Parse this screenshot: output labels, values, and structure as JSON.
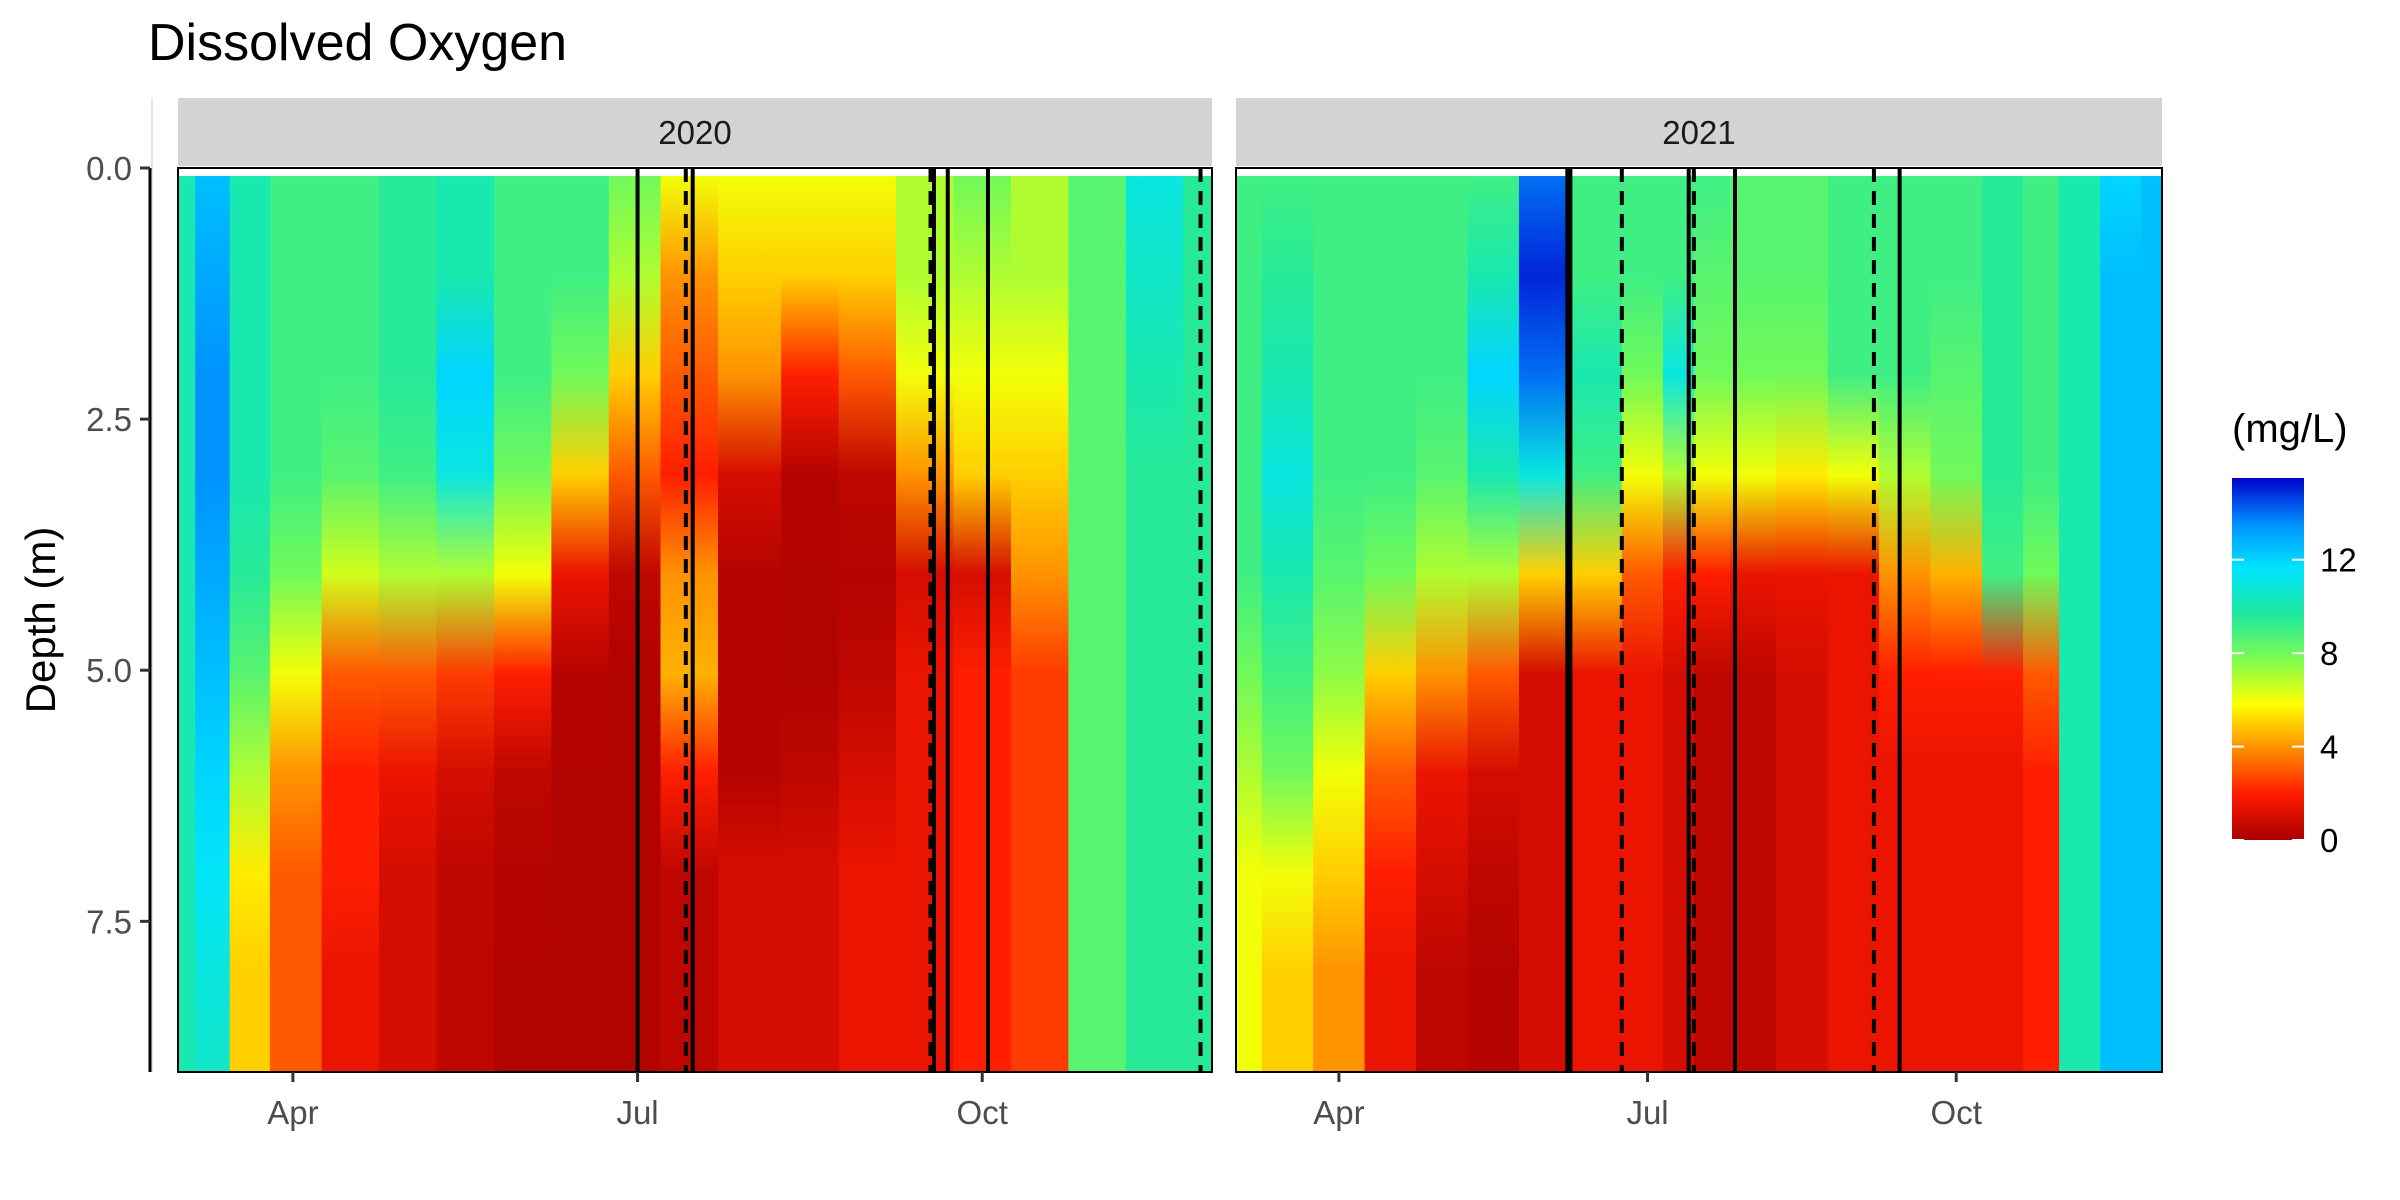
{
  "chart_data": {
    "type": "heatmap",
    "title": "Dissolved Oxygen",
    "ylabel": "Depth (m)",
    "xlabel": "",
    "y_reversed": true,
    "ylim": [
      0,
      9
    ],
    "y_ticks": [
      0.0,
      2.5,
      5.0,
      7.5
    ],
    "y_tick_labels": [
      "0.0",
      "2.5",
      "5.0",
      "7.5"
    ],
    "x_domain_months": [
      3.0,
      12.0
    ],
    "x_ticks": [
      {
        "label": "Apr",
        "month": 4.0
      },
      {
        "label": "Jul",
        "month": 7.0
      },
      {
        "label": "Oct",
        "month": 10.0
      }
    ],
    "colorbar": {
      "title": "(mg/L)",
      "min": 0,
      "max": 15.5,
      "ticks": [
        0,
        4,
        8,
        12
      ],
      "tick_labels": [
        "0",
        "4",
        "8",
        "12"
      ],
      "palette": [
        "#a80000",
        "#ff1a00",
        "#ff8c00",
        "#ffff00",
        "#7cfc50",
        "#1ee8a0",
        "#00e5ff",
        "#0090ff",
        "#0000cc"
      ]
    },
    "panels": [
      {
        "label": "2020",
        "profiles": [
          {
            "month": 3.0,
            "values": [
              10,
              10,
              10,
              10,
              10,
              10,
              10,
              10,
              10,
              10
            ]
          },
          {
            "month": 3.3,
            "values": [
              12.5,
              13,
              13.5,
              13.5,
              13,
              12.5,
              12,
              11.5,
              11,
              10.5
            ]
          },
          {
            "month": 3.6,
            "values": [
              10,
              10,
              10,
              10,
              9.5,
              8.5,
              7,
              5.5,
              5,
              5
            ]
          },
          {
            "month": 4.0,
            "values": [
              9,
              9,
              9,
              9,
              8,
              6,
              4,
              3,
              3,
              3
            ]
          },
          {
            "month": 4.5,
            "values": [
              9,
              9,
              9,
              8.5,
              6.5,
              3,
              2,
              2,
              1.5,
              1.5
            ]
          },
          {
            "month": 5.0,
            "values": [
              9.5,
              9.5,
              9.5,
              9,
              7,
              3,
              1.5,
              1,
              1,
              1
            ]
          },
          {
            "month": 5.5,
            "values": [
              10,
              10,
              12,
              11,
              7,
              2.5,
              1,
              0.5,
              0.5,
              0.5
            ]
          },
          {
            "month": 6.0,
            "values": [
              9,
              9,
              9,
              8,
              6,
              2,
              0.5,
              0.3,
              0.2,
              0.2
            ]
          },
          {
            "month": 6.5,
            "values": [
              9,
              9,
              8,
              5,
              1.5,
              0.3,
              0.2,
              0.2,
              0.2,
              0.2
            ]
          },
          {
            "month": 7.0,
            "values": [
              8,
              7,
              5,
              3,
              0.5,
              0.2,
              0.2,
              0.2,
              0.2,
              0.2
            ]
          },
          {
            "month": 7.4,
            "values": [
              6,
              4,
              3,
              2,
              4,
              4.5,
              2,
              0.5,
              0.5,
              0.5
            ]
          },
          {
            "month": 8.0,
            "values": [
              6,
              5,
              4,
              1,
              0.3,
              0.3,
              0.3,
              1,
              1,
              1
            ]
          },
          {
            "month": 8.5,
            "values": [
              6,
              5,
              2,
              0.3,
              0.2,
              0.2,
              0.5,
              1,
              1,
              1
            ]
          },
          {
            "month": 9.0,
            "values": [
              6,
              5,
              3,
              0.5,
              0.3,
              0.5,
              1,
              1.5,
              1.5,
              1.5
            ]
          },
          {
            "month": 9.5,
            "values": [
              7,
              7,
              6,
              4,
              1,
              1.5,
              1.5,
              1.5,
              1.5,
              1.5
            ]
          },
          {
            "month": 10.0,
            "values": [
              8,
              7,
              6,
              5,
              1,
              2,
              2,
              2,
              2,
              2
            ]
          },
          {
            "month": 10.5,
            "values": [
              7,
              7,
              6,
              5,
              4,
              2.5,
              2.5,
              2.5,
              2.5,
              2.5
            ]
          },
          {
            "month": 11.0,
            "values": [
              8.5,
              8.5,
              8.5,
              8.5,
              8.5,
              8.5,
              8.5,
              8.5,
              8.5,
              8.5
            ]
          },
          {
            "month": 11.5,
            "values": [
              11,
              10.5,
              10,
              9.5,
              9.5,
              9.5,
              9.5,
              9.5,
              9.5,
              9.5
            ]
          },
          {
            "month": 12.0,
            "values": [
              9.5,
              9.5,
              9.5,
              9.5,
              9.5,
              9.5,
              9.5,
              9.5,
              9.5,
              9.5
            ]
          }
        ],
        "solid_lines": [
          7.0,
          7.48,
          9.58,
          9.7,
          10.05
        ],
        "dashed_lines": [
          7.42,
          9.55,
          11.9
        ]
      },
      {
        "label": "2021",
        "profiles": [
          {
            "month": 3.0,
            "values": [
              9,
              9,
              9,
              9,
              9,
              8,
              7,
              6,
              6,
              6
            ]
          },
          {
            "month": 3.5,
            "values": [
              9,
              9.5,
              10,
              11,
              10,
              9,
              8,
              6,
              5,
              5
            ]
          },
          {
            "month": 4.0,
            "values": [
              9,
              9,
              9,
              9,
              8.5,
              7.5,
              6,
              5,
              4,
              4
            ]
          },
          {
            "month": 4.5,
            "values": [
              9,
              9,
              9,
              9,
              8,
              5,
              3,
              2,
              1.5,
              1.5
            ]
          },
          {
            "month": 5.0,
            "values": [
              9,
              9,
              9,
              8.5,
              7,
              4,
              1.5,
              1,
              0.5,
              0.5
            ]
          },
          {
            "month": 5.5,
            "values": [
              9,
              10,
              12,
              10,
              7,
              3,
              1,
              0.5,
              0.3,
              0.3
            ]
          },
          {
            "month": 6.0,
            "values": [
              14,
              15,
              14,
              11,
              5,
              1,
              1,
              1,
              1,
              1
            ]
          },
          {
            "month": 6.5,
            "values": [
              9,
              9,
              10,
              9,
              5,
              1.5,
              1.5,
              1.5,
              1.5,
              1.5
            ]
          },
          {
            "month": 7.0,
            "values": [
              9,
              9,
              8,
              6,
              3,
              1.5,
              1.5,
              1.5,
              1.5,
              1.5
            ]
          },
          {
            "month": 7.3,
            "values": [
              9,
              9,
              11,
              7,
              2,
              1,
              1,
              1,
              1,
              1
            ]
          },
          {
            "month": 7.6,
            "values": [
              9,
              8.5,
              8,
              6,
              2,
              0.5,
              0.5,
              0.5,
              0.5,
              0.5
            ]
          },
          {
            "month": 8.0,
            "values": [
              8.5,
              8.5,
              8,
              6,
              1.5,
              0.5,
              0.5,
              0.5,
              0.5,
              0.5
            ]
          },
          {
            "month": 8.5,
            "values": [
              8.5,
              8.5,
              8,
              5.5,
              1.5,
              1,
              1,
              1,
              1,
              1
            ]
          },
          {
            "month": 9.0,
            "values": [
              9,
              9,
              9,
              6,
              1.5,
              1.5,
              1.5,
              1.5,
              1.5,
              1.5
            ]
          },
          {
            "month": 9.5,
            "values": [
              9,
              9,
              9,
              7,
              4,
              2,
              1.5,
              1.5,
              1.5,
              1.5
            ]
          },
          {
            "month": 10.0,
            "values": [
              9,
              9,
              8.5,
              8,
              4.5,
              2,
              1.5,
              1.5,
              1.5,
              1.5
            ]
          },
          {
            "month": 10.5,
            "values": [
              9.5,
              9.5,
              9.5,
              9.5,
              9,
              2,
              1.5,
              1.5,
              1.5,
              1.5
            ]
          },
          {
            "month": 10.8,
            "values": [
              9,
              9,
              9,
              9,
              8,
              3,
              2,
              2,
              2,
              2
            ]
          },
          {
            "month": 11.2,
            "values": [
              10,
              10,
              10,
              10,
              10,
              10,
              10,
              10,
              10,
              10
            ]
          },
          {
            "month": 11.6,
            "values": [
              12,
              12.5,
              12.5,
              12.5,
              12.5,
              12.5,
              12.5,
              12.5,
              12.5,
              12.5
            ]
          },
          {
            "month": 12.0,
            "values": [
              12.5,
              12.5,
              12.5,
              12.5,
              12.5,
              12.5,
              12.5,
              12.5,
              12.5,
              12.5
            ]
          }
        ],
        "solid_lines": [
          6.22,
          6.25,
          7.4,
          7.85,
          9.45
        ],
        "dashed_lines": [
          6.75,
          7.45,
          9.2
        ]
      }
    ]
  }
}
